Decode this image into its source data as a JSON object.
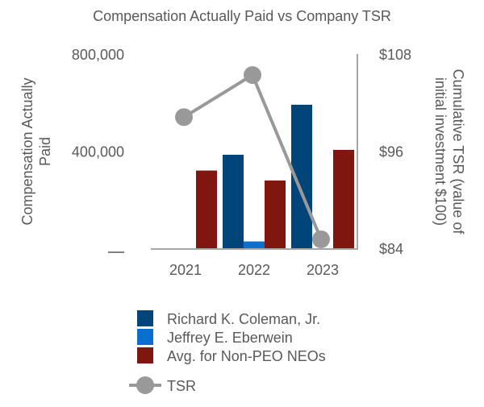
{
  "chart_data": {
    "type": "bar",
    "title": "Compensation Actually Paid vs Company TSR",
    "categories": [
      "2021",
      "2022",
      "2023"
    ],
    "ylabel": "Compensation Actually Paid",
    "y2label": "Cumulative TSR (value of initial investment $100)",
    "ylim": [
      0,
      800000
    ],
    "yticks": [
      {
        "value": 0,
        "label": "—"
      },
      {
        "value": 400000,
        "label": "400,000"
      },
      {
        "value": 800000,
        "label": "800,000"
      }
    ],
    "y2lim": [
      84,
      108
    ],
    "y2ticks": [
      {
        "value": 84,
        "label": "$84"
      },
      {
        "value": 96,
        "label": "$96"
      },
      {
        "value": 108,
        "label": "$108"
      }
    ],
    "grid": false,
    "legend": "bottom",
    "series": [
      {
        "name": "Richard K. Coleman, Jr.",
        "type": "bar",
        "color": "#004579",
        "values": [
          0,
          385000,
          591000
        ]
      },
      {
        "name": "Jeffrey E. Eberwein",
        "type": "bar",
        "color": "#0b6fce",
        "values": [
          0,
          28000,
          0
        ]
      },
      {
        "name": "Avg. for Non-PEO NEOs",
        "type": "bar",
        "color": "#7f1710",
        "values": [
          320000,
          279000,
          405000
        ]
      },
      {
        "name": "TSR",
        "type": "line",
        "axis": "right",
        "color": "#999999",
        "values": [
          100.2,
          105.4,
          85.1
        ]
      }
    ]
  }
}
